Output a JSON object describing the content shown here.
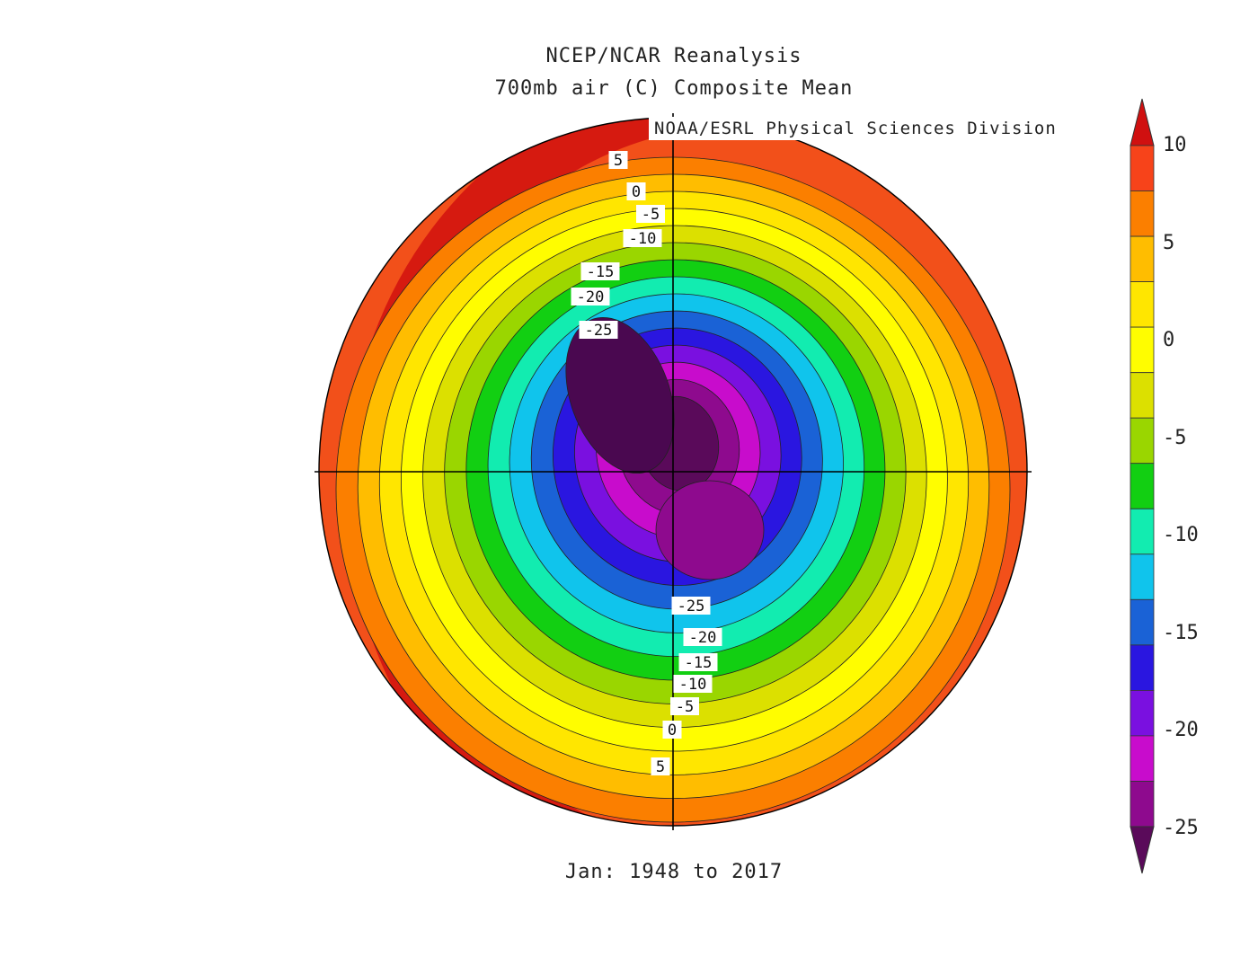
{
  "header": {
    "title": "NCEP/NCAR Reanalysis",
    "subtitle": "700mb air (C) Composite Mean",
    "credit": "NOAA/ESRL Physical Sciences Division"
  },
  "footer": {
    "period": "Jan: 1948 to 2017"
  },
  "map": {
    "projection": "north polar stereographic",
    "variable": "700mb air temperature",
    "units": "C",
    "contour_interval": 2.5,
    "contour_labels": [
      "5",
      "0",
      "-5",
      "-10",
      "-15",
      "-20",
      "-25"
    ],
    "labels_upper": [
      "5",
      "0",
      "-5",
      "-10",
      "-15",
      "-20",
      "-25"
    ],
    "labels_lower": [
      "-25",
      "-20",
      "-15",
      "-10",
      "-5",
      "0",
      "5"
    ]
  },
  "colorbar": {
    "tick_labels": [
      "10",
      "5",
      "0",
      "-5",
      "-10",
      "-15",
      "-20",
      "-25"
    ],
    "levels": [
      10,
      7.5,
      5,
      2.5,
      0,
      -2.5,
      -5,
      -7.5,
      -10,
      -12.5,
      -15,
      -17.5,
      -20,
      -22.5,
      -25
    ],
    "colors": [
      "#e41a1c",
      "#f7431a",
      "#fb7f00",
      "#ffbd00",
      "#ffe600",
      "#fffd00",
      "#dce000",
      "#9ad600",
      "#12cf12",
      "#12ecb0",
      "#10c4ec",
      "#1a62d6",
      "#2a16e0",
      "#7a10e0",
      "#c80ccc",
      "#8e0a8e",
      "#5a0a5a"
    ],
    "top_arrow_color": "#d01010",
    "bottom_arrow_color": "#5a0a5a"
  }
}
